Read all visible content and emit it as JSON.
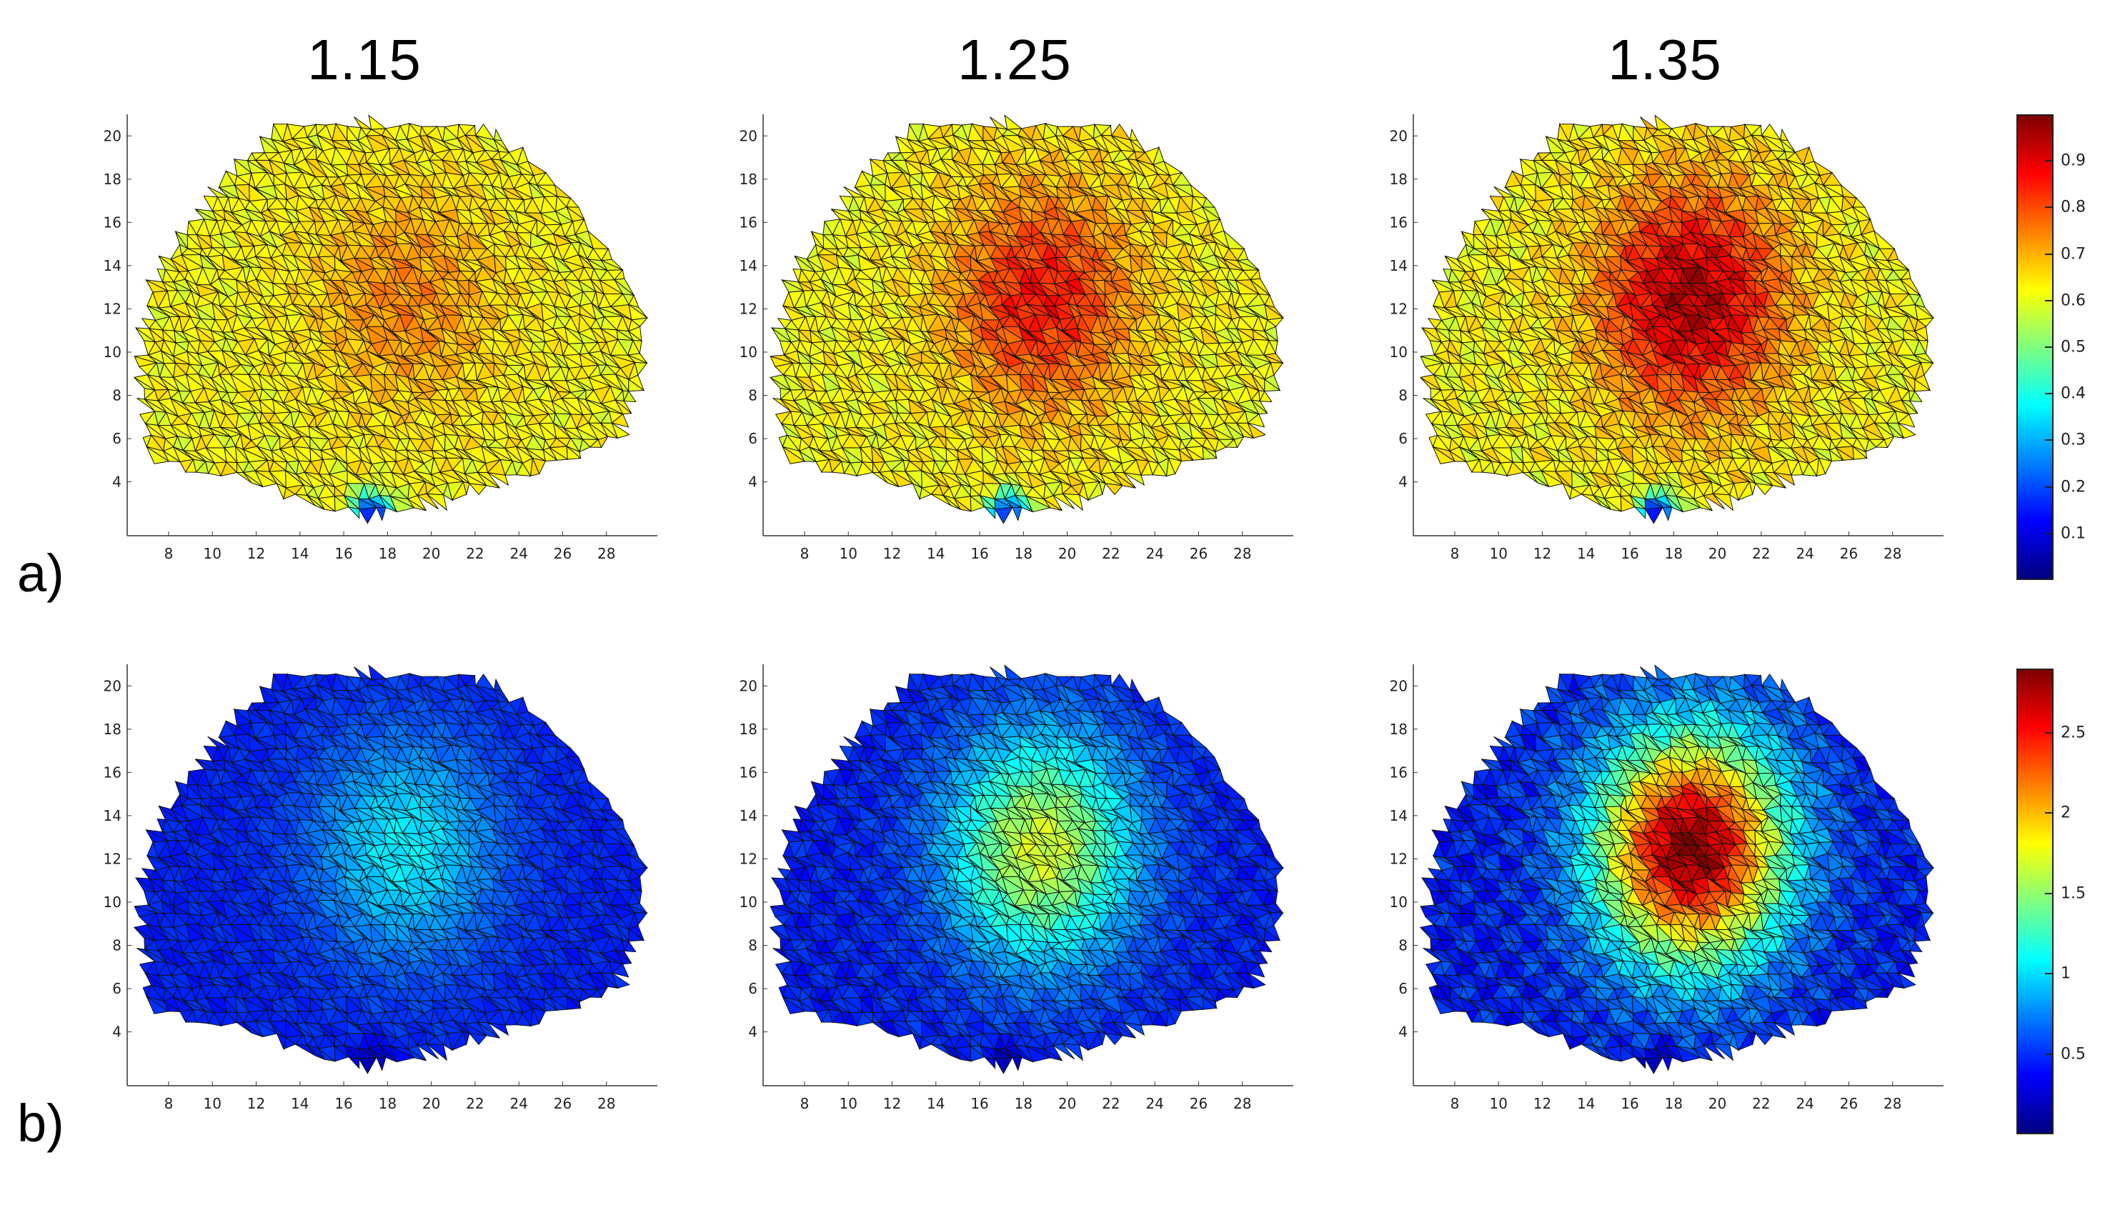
{
  "columns": [
    "1.15",
    "1.25",
    "1.35"
  ],
  "rows": [
    "a)",
    "b)"
  ],
  "colormap": [
    "#00007f",
    "#0000ff",
    "#007fff",
    "#00ffff",
    "#7fff7f",
    "#ffff00",
    "#ff7f00",
    "#ff0000",
    "#7f0000"
  ],
  "chart_data": [
    {
      "type": "heatmap",
      "row": "a)",
      "subplots": [
        "1.15",
        "1.25",
        "1.35"
      ],
      "x_ticks": [
        8,
        10,
        12,
        14,
        16,
        18,
        20,
        22,
        24,
        26,
        28
      ],
      "y_ticks": [
        4,
        6,
        8,
        10,
        12,
        14,
        16,
        18,
        20
      ],
      "xlim": [
        6.5,
        30
      ],
      "ylim": [
        2.5,
        21
      ],
      "colorbar": {
        "range": [
          0,
          1
        ],
        "ticks": [
          "0.1",
          "0.2",
          "0.3",
          "0.4",
          "0.5",
          "0.6",
          "0.7",
          "0.8",
          "0.9"
        ]
      },
      "field_peak": [
        0.74,
        0.86,
        0.95
      ],
      "field_base": 0.62
    },
    {
      "type": "heatmap",
      "row": "b)",
      "subplots": [
        "1.15",
        "1.25",
        "1.35"
      ],
      "x_ticks": [
        8,
        10,
        12,
        14,
        16,
        18,
        20,
        22,
        24,
        26,
        28
      ],
      "y_ticks": [
        4,
        6,
        8,
        10,
        12,
        14,
        16,
        18,
        20
      ],
      "xlim": [
        6.5,
        30
      ],
      "ylim": [
        2.5,
        21
      ],
      "colorbar": {
        "range": [
          0,
          2.9
        ],
        "ticks": [
          "0.5",
          "1",
          "1.5",
          "2",
          "2.5"
        ]
      },
      "field_peak": [
        1.05,
        1.7,
        2.9
      ],
      "field_base": 0.45
    }
  ]
}
